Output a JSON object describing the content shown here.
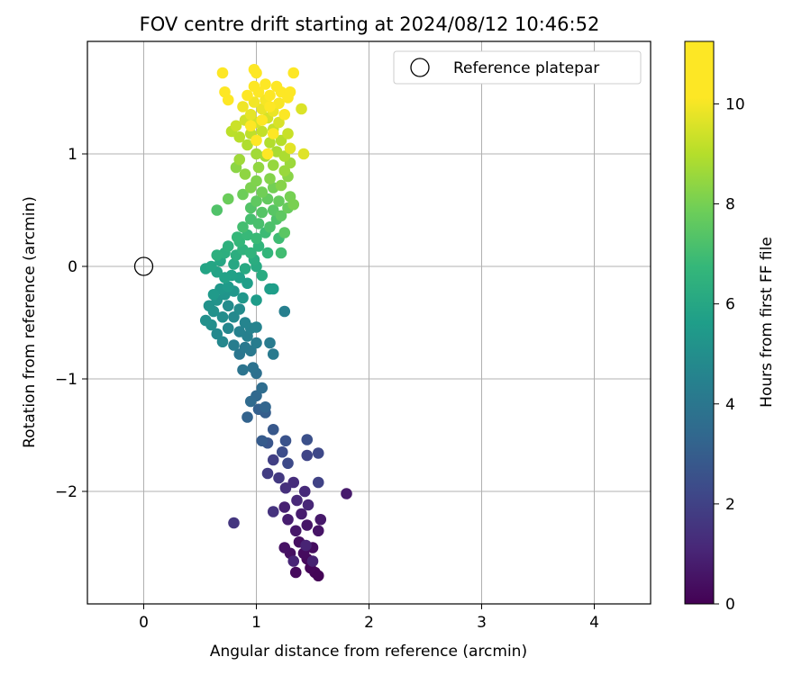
{
  "chart_data": {
    "type": "scatter",
    "title": "FOV centre drift starting at 2024/08/12 10:46:52",
    "xlabel": "Angular distance from reference (arcmin)",
    "ylabel": "Rotation from reference (arcmin)",
    "xlim": [
      -0.5,
      4.5
    ],
    "ylim": [
      -3.0,
      2.0
    ],
    "xticks": [
      0,
      1,
      2,
      3,
      4
    ],
    "xtick_labels": [
      "0",
      "1",
      "2",
      "3",
      "4"
    ],
    "yticks": [
      -2,
      -1,
      0,
      1
    ],
    "ytick_labels": [
      "−2",
      "−1",
      "0",
      "1"
    ],
    "grid": true,
    "legend": {
      "position": "top-right",
      "entries": [
        "Reference platepar"
      ]
    },
    "reference_point": {
      "x": 0,
      "y": 0,
      "label": "Reference platepar"
    },
    "colorbar": {
      "label": "Hours from first FF file",
      "range": [
        0,
        11.25
      ],
      "ticks": [
        0,
        2,
        4,
        6,
        8,
        10
      ],
      "tick_labels": [
        "0",
        "2",
        "4",
        "6",
        "8",
        "10"
      ],
      "colormap": "viridis"
    },
    "points": [
      {
        "x": 1.55,
        "y": -2.75,
        "h": 0.05
      },
      {
        "x": 1.52,
        "y": -2.72,
        "h": 0.1
      },
      {
        "x": 1.48,
        "y": -2.68,
        "h": 0.15
      },
      {
        "x": 1.45,
        "y": -2.6,
        "h": 0.2
      },
      {
        "x": 1.35,
        "y": -2.72,
        "h": 0.25
      },
      {
        "x": 1.42,
        "y": -2.55,
        "h": 0.3
      },
      {
        "x": 1.5,
        "y": -2.5,
        "h": 0.35
      },
      {
        "x": 1.38,
        "y": -2.45,
        "h": 0.4
      },
      {
        "x": 1.3,
        "y": -2.55,
        "h": 0.45
      },
      {
        "x": 1.25,
        "y": -2.5,
        "h": 0.5
      },
      {
        "x": 1.55,
        "y": -2.35,
        "h": 0.55
      },
      {
        "x": 1.45,
        "y": -2.3,
        "h": 0.6
      },
      {
        "x": 1.35,
        "y": -2.35,
        "h": 0.65
      },
      {
        "x": 1.57,
        "y": -2.25,
        "h": 0.7
      },
      {
        "x": 1.8,
        "y": -2.02,
        "h": 0.75
      },
      {
        "x": 1.4,
        "y": -2.2,
        "h": 0.8
      },
      {
        "x": 1.28,
        "y": -2.25,
        "h": 0.85
      },
      {
        "x": 1.25,
        "y": -2.14,
        "h": 0.9
      },
      {
        "x": 1.5,
        "y": -2.62,
        "h": 0.95
      },
      {
        "x": 1.44,
        "y": -2.48,
        "h": 1.0
      },
      {
        "x": 1.33,
        "y": -2.62,
        "h": 1.05
      },
      {
        "x": 1.46,
        "y": -2.12,
        "h": 1.1
      },
      {
        "x": 1.36,
        "y": -2.08,
        "h": 1.15
      },
      {
        "x": 1.43,
        "y": -2.0,
        "h": 1.2
      },
      {
        "x": 1.33,
        "y": -1.92,
        "h": 1.3
      },
      {
        "x": 1.26,
        "y": -1.97,
        "h": 1.4
      },
      {
        "x": 1.15,
        "y": -2.18,
        "h": 1.5
      },
      {
        "x": 0.8,
        "y": -2.28,
        "h": 1.6
      },
      {
        "x": 1.2,
        "y": -1.88,
        "h": 1.7
      },
      {
        "x": 1.1,
        "y": -1.84,
        "h": 1.8
      },
      {
        "x": 1.15,
        "y": -1.72,
        "h": 1.9
      },
      {
        "x": 1.55,
        "y": -1.92,
        "h": 2.0
      },
      {
        "x": 1.45,
        "y": -1.68,
        "h": 2.1
      },
      {
        "x": 1.55,
        "y": -1.66,
        "h": 2.2
      },
      {
        "x": 1.28,
        "y": -1.75,
        "h": 2.3
      },
      {
        "x": 1.23,
        "y": -1.65,
        "h": 2.4
      },
      {
        "x": 1.45,
        "y": -1.54,
        "h": 2.5
      },
      {
        "x": 1.26,
        "y": -1.55,
        "h": 2.6
      },
      {
        "x": 1.1,
        "y": -1.57,
        "h": 2.7
      },
      {
        "x": 1.15,
        "y": -1.45,
        "h": 2.8
      },
      {
        "x": 1.05,
        "y": -1.55,
        "h": 2.9
      },
      {
        "x": 1.08,
        "y": -1.3,
        "h": 3.0
      },
      {
        "x": 1.02,
        "y": -1.27,
        "h": 3.1
      },
      {
        "x": 0.92,
        "y": -1.34,
        "h": 3.2
      },
      {
        "x": 1.08,
        "y": -1.25,
        "h": 3.3
      },
      {
        "x": 1.0,
        "y": -1.15,
        "h": 3.4
      },
      {
        "x": 0.95,
        "y": -1.2,
        "h": 3.5
      },
      {
        "x": 1.05,
        "y": -1.08,
        "h": 3.6
      },
      {
        "x": 1.0,
        "y": -0.95,
        "h": 3.7
      },
      {
        "x": 0.97,
        "y": -0.9,
        "h": 3.8
      },
      {
        "x": 0.88,
        "y": -0.92,
        "h": 3.9
      },
      {
        "x": 0.85,
        "y": -0.78,
        "h": 4.0
      },
      {
        "x": 0.9,
        "y": -0.72,
        "h": 4.05
      },
      {
        "x": 0.95,
        "y": -0.75,
        "h": 4.1
      },
      {
        "x": 1.15,
        "y": -0.78,
        "h": 4.15
      },
      {
        "x": 1.12,
        "y": -0.68,
        "h": 4.2
      },
      {
        "x": 1.0,
        "y": -0.68,
        "h": 4.25
      },
      {
        "x": 0.8,
        "y": -0.7,
        "h": 4.3
      },
      {
        "x": 1.25,
        "y": -0.4,
        "h": 4.35
      },
      {
        "x": 0.92,
        "y": -0.62,
        "h": 4.4
      },
      {
        "x": 0.85,
        "y": -0.58,
        "h": 4.45
      },
      {
        "x": 0.95,
        "y": -0.55,
        "h": 4.5
      },
      {
        "x": 1.0,
        "y": -0.54,
        "h": 4.55
      },
      {
        "x": 0.9,
        "y": -0.5,
        "h": 4.6
      },
      {
        "x": 0.75,
        "y": -0.55,
        "h": 4.65
      },
      {
        "x": 0.7,
        "y": -0.67,
        "h": 4.7
      },
      {
        "x": 0.65,
        "y": -0.6,
        "h": 4.75
      },
      {
        "x": 0.8,
        "y": -0.45,
        "h": 4.8
      },
      {
        "x": 0.85,
        "y": -0.38,
        "h": 4.85
      },
      {
        "x": 0.75,
        "y": -0.35,
        "h": 4.9
      },
      {
        "x": 0.7,
        "y": -0.45,
        "h": 4.95
      },
      {
        "x": 0.6,
        "y": -0.52,
        "h": 5.0
      },
      {
        "x": 0.55,
        "y": -0.48,
        "h": 5.05
      },
      {
        "x": 0.62,
        "y": -0.4,
        "h": 5.1
      },
      {
        "x": 0.58,
        "y": -0.35,
        "h": 5.15
      },
      {
        "x": 0.65,
        "y": -0.3,
        "h": 5.2
      },
      {
        "x": 0.72,
        "y": -0.25,
        "h": 5.25
      },
      {
        "x": 0.8,
        "y": -0.22,
        "h": 5.3
      },
      {
        "x": 0.88,
        "y": -0.28,
        "h": 5.35
      },
      {
        "x": 0.68,
        "y": -0.2,
        "h": 5.4
      },
      {
        "x": 0.62,
        "y": -0.25,
        "h": 5.45
      },
      {
        "x": 0.75,
        "y": -0.18,
        "h": 5.5
      },
      {
        "x": 1.0,
        "y": -0.3,
        "h": 5.55
      },
      {
        "x": 1.12,
        "y": -0.2,
        "h": 5.6
      },
      {
        "x": 1.15,
        "y": -0.2,
        "h": 5.62
      },
      {
        "x": 0.92,
        "y": -0.15,
        "h": 5.65
      },
      {
        "x": 0.85,
        "y": -0.1,
        "h": 5.7
      },
      {
        "x": 0.78,
        "y": -0.08,
        "h": 5.75
      },
      {
        "x": 0.72,
        "y": -0.1,
        "h": 5.8
      },
      {
        "x": 0.65,
        "y": -0.05,
        "h": 5.85
      },
      {
        "x": 0.55,
        "y": -0.02,
        "h": 5.9
      },
      {
        "x": 0.6,
        "y": 0.0,
        "h": 5.95
      },
      {
        "x": 0.68,
        "y": 0.05,
        "h": 6.0
      },
      {
        "x": 0.8,
        "y": 0.02,
        "h": 6.05
      },
      {
        "x": 0.9,
        "y": -0.02,
        "h": 6.1
      },
      {
        "x": 1.0,
        "y": 0.0,
        "h": 6.15
      },
      {
        "x": 1.05,
        "y": -0.08,
        "h": 6.2
      },
      {
        "x": 0.98,
        "y": 0.06,
        "h": 6.25
      },
      {
        "x": 0.82,
        "y": 0.1,
        "h": 6.3
      },
      {
        "x": 0.72,
        "y": 0.12,
        "h": 6.35
      },
      {
        "x": 0.65,
        "y": 0.1,
        "h": 6.4
      },
      {
        "x": 0.75,
        "y": 0.18,
        "h": 6.45
      },
      {
        "x": 0.88,
        "y": 0.15,
        "h": 6.5
      },
      {
        "x": 0.95,
        "y": 0.12,
        "h": 6.55
      },
      {
        "x": 1.02,
        "y": 0.18,
        "h": 6.6
      },
      {
        "x": 1.1,
        "y": 0.12,
        "h": 6.65
      },
      {
        "x": 0.85,
        "y": 0.22,
        "h": 6.7
      },
      {
        "x": 0.83,
        "y": 0.26,
        "h": 6.75
      },
      {
        "x": 0.92,
        "y": 0.28,
        "h": 6.8
      },
      {
        "x": 1.0,
        "y": 0.25,
        "h": 6.85
      },
      {
        "x": 1.08,
        "y": 0.3,
        "h": 6.9
      },
      {
        "x": 1.2,
        "y": 0.25,
        "h": 6.95
      },
      {
        "x": 1.22,
        "y": 0.12,
        "h": 7.0
      },
      {
        "x": 0.88,
        "y": 0.35,
        "h": 7.05
      },
      {
        "x": 0.95,
        "y": 0.42,
        "h": 7.1
      },
      {
        "x": 1.02,
        "y": 0.38,
        "h": 7.15
      },
      {
        "x": 1.12,
        "y": 0.35,
        "h": 7.2
      },
      {
        "x": 1.18,
        "y": 0.42,
        "h": 7.25
      },
      {
        "x": 0.65,
        "y": 0.5,
        "h": 7.3
      },
      {
        "x": 0.95,
        "y": 0.52,
        "h": 7.35
      },
      {
        "x": 1.05,
        "y": 0.48,
        "h": 7.4
      },
      {
        "x": 1.15,
        "y": 0.5,
        "h": 7.45
      },
      {
        "x": 1.25,
        "y": 0.3,
        "h": 7.5
      },
      {
        "x": 1.22,
        "y": 0.45,
        "h": 7.55
      },
      {
        "x": 1.0,
        "y": 0.58,
        "h": 7.6
      },
      {
        "x": 1.1,
        "y": 0.6,
        "h": 7.65
      },
      {
        "x": 1.2,
        "y": 0.58,
        "h": 7.7
      },
      {
        "x": 1.28,
        "y": 0.52,
        "h": 7.75
      },
      {
        "x": 0.75,
        "y": 0.6,
        "h": 7.8
      },
      {
        "x": 0.88,
        "y": 0.64,
        "h": 7.85
      },
      {
        "x": 1.05,
        "y": 0.66,
        "h": 7.9
      },
      {
        "x": 1.15,
        "y": 0.7,
        "h": 7.95
      },
      {
        "x": 1.3,
        "y": 0.62,
        "h": 8.0
      },
      {
        "x": 1.33,
        "y": 0.55,
        "h": 8.05
      },
      {
        "x": 0.95,
        "y": 0.7,
        "h": 8.1
      },
      {
        "x": 1.0,
        "y": 0.76,
        "h": 8.15
      },
      {
        "x": 1.12,
        "y": 0.78,
        "h": 8.2
      },
      {
        "x": 1.22,
        "y": 0.72,
        "h": 8.25
      },
      {
        "x": 1.28,
        "y": 0.8,
        "h": 8.3
      },
      {
        "x": 0.82,
        "y": 0.88,
        "h": 8.35
      },
      {
        "x": 0.9,
        "y": 0.82,
        "h": 8.4
      },
      {
        "x": 1.02,
        "y": 0.88,
        "h": 8.45
      },
      {
        "x": 1.15,
        "y": 0.9,
        "h": 8.5
      },
      {
        "x": 1.25,
        "y": 0.85,
        "h": 8.55
      },
      {
        "x": 1.3,
        "y": 0.92,
        "h": 8.6
      },
      {
        "x": 0.85,
        "y": 0.95,
        "h": 8.65
      },
      {
        "x": 1.0,
        "y": 1.0,
        "h": 8.7
      },
      {
        "x": 1.08,
        "y": 0.98,
        "h": 8.75
      },
      {
        "x": 1.18,
        "y": 1.02,
        "h": 8.8
      },
      {
        "x": 1.25,
        "y": 0.98,
        "h": 8.85
      },
      {
        "x": 0.92,
        "y": 1.08,
        "h": 8.9
      },
      {
        "x": 1.12,
        "y": 1.1,
        "h": 8.95
      },
      {
        "x": 1.22,
        "y": 1.12,
        "h": 9.0
      },
      {
        "x": 0.85,
        "y": 1.15,
        "h": 9.05
      },
      {
        "x": 0.78,
        "y": 1.2,
        "h": 9.1
      },
      {
        "x": 0.95,
        "y": 1.18,
        "h": 9.15
      },
      {
        "x": 1.05,
        "y": 1.2,
        "h": 9.2
      },
      {
        "x": 1.15,
        "y": 1.22,
        "h": 9.25
      },
      {
        "x": 1.28,
        "y": 1.18,
        "h": 9.3
      },
      {
        "x": 0.82,
        "y": 1.25,
        "h": 9.35
      },
      {
        "x": 0.9,
        "y": 1.3,
        "h": 9.4
      },
      {
        "x": 1.0,
        "y": 1.28,
        "h": 9.45
      },
      {
        "x": 1.1,
        "y": 1.32,
        "h": 9.5
      },
      {
        "x": 1.2,
        "y": 1.28,
        "h": 9.55
      },
      {
        "x": 1.4,
        "y": 1.4,
        "h": 9.6
      },
      {
        "x": 1.42,
        "y": 1.0,
        "h": 9.65
      },
      {
        "x": 1.3,
        "y": 1.05,
        "h": 9.7
      },
      {
        "x": 0.95,
        "y": 1.35,
        "h": 9.75
      },
      {
        "x": 1.05,
        "y": 1.4,
        "h": 9.8
      },
      {
        "x": 1.15,
        "y": 1.38,
        "h": 9.85
      },
      {
        "x": 0.88,
        "y": 1.42,
        "h": 9.9
      },
      {
        "x": 0.98,
        "y": 1.46,
        "h": 9.95
      },
      {
        "x": 1.08,
        "y": 1.48,
        "h": 10.0
      },
      {
        "x": 1.2,
        "y": 1.45,
        "h": 10.05
      },
      {
        "x": 1.25,
        "y": 1.35,
        "h": 10.1
      },
      {
        "x": 0.75,
        "y": 1.48,
        "h": 10.15
      },
      {
        "x": 0.92,
        "y": 1.52,
        "h": 10.2
      },
      {
        "x": 1.02,
        "y": 1.55,
        "h": 10.25
      },
      {
        "x": 1.12,
        "y": 1.52,
        "h": 10.3
      },
      {
        "x": 1.22,
        "y": 1.55,
        "h": 10.4
      },
      {
        "x": 1.28,
        "y": 1.5,
        "h": 10.45
      },
      {
        "x": 0.72,
        "y": 1.55,
        "h": 10.5
      },
      {
        "x": 0.98,
        "y": 1.6,
        "h": 10.55
      },
      {
        "x": 1.08,
        "y": 1.62,
        "h": 10.6
      },
      {
        "x": 1.18,
        "y": 1.6,
        "h": 10.65
      },
      {
        "x": 0.7,
        "y": 1.72,
        "h": 10.7
      },
      {
        "x": 1.0,
        "y": 1.72,
        "h": 10.75
      },
      {
        "x": 0.98,
        "y": 1.75,
        "h": 10.8
      },
      {
        "x": 1.33,
        "y": 1.72,
        "h": 10.85
      },
      {
        "x": 1.3,
        "y": 1.55,
        "h": 10.9
      },
      {
        "x": 1.12,
        "y": 1.42,
        "h": 10.95
      },
      {
        "x": 1.05,
        "y": 1.3,
        "h": 11.0
      },
      {
        "x": 0.95,
        "y": 1.25,
        "h": 11.05
      },
      {
        "x": 1.15,
        "y": 1.18,
        "h": 11.1
      },
      {
        "x": 1.1,
        "y": 1.0,
        "h": 11.15
      },
      {
        "x": 1.0,
        "y": 1.12,
        "h": 11.2
      }
    ]
  }
}
